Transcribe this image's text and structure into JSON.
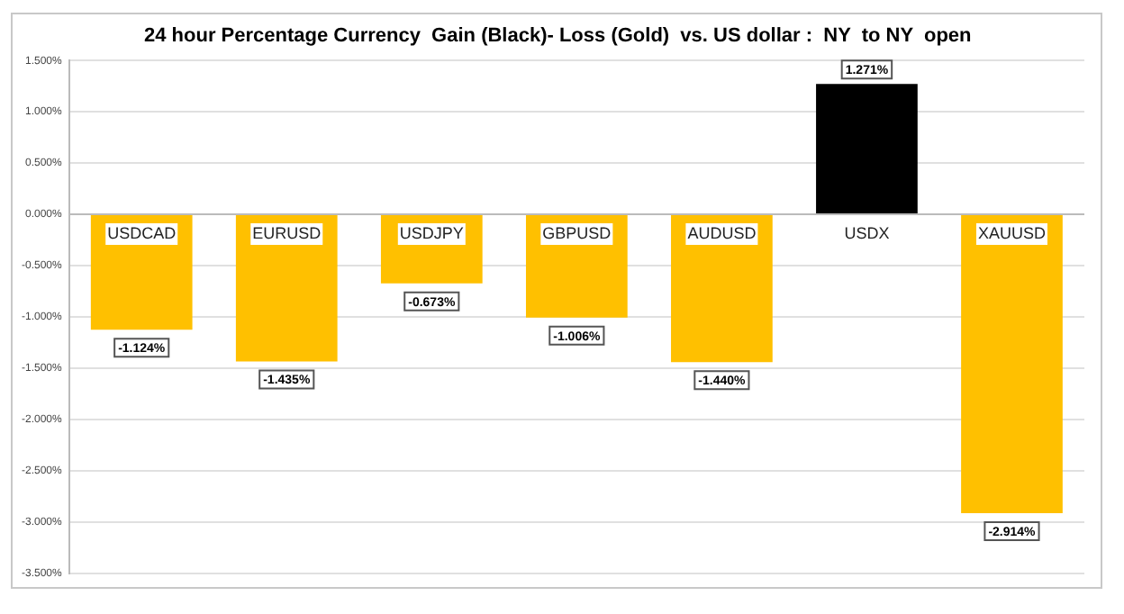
{
  "chart_data": {
    "type": "bar",
    "title": "24 hour Percentage Currency  Gain (Black)- Loss (Gold)  vs. US dollar :  NY  to NY  open",
    "categories": [
      "USDCAD",
      "EURUSD",
      "USDJPY",
      "GBPUSD",
      "AUDUSD",
      "USDX",
      "XAUUSD"
    ],
    "values": [
      -1.124,
      -1.435,
      -0.673,
      -1.006,
      -1.44,
      1.271,
      -2.914
    ],
    "colors": [
      "#ffc000",
      "#ffc000",
      "#ffc000",
      "#ffc000",
      "#ffc000",
      "#000000",
      "#ffc000"
    ],
    "value_labels": [
      "-1.124%",
      "-1.435%",
      "-0.673%",
      "-1.006%",
      "-1.440%",
      "1.271%",
      "-2.914%"
    ],
    "ylim": [
      -3.5,
      1.5
    ],
    "yticks": [
      {
        "value": -3.5,
        "label": "-3.500%"
      },
      {
        "value": -3,
        "label": "-3.000%"
      },
      {
        "value": -2.5,
        "label": "-2.500%"
      },
      {
        "value": -2,
        "label": "-2.000%"
      },
      {
        "value": -1.5,
        "label": "-1.500%"
      },
      {
        "value": -1,
        "label": "-1.000%"
      },
      {
        "value": -0.5,
        "label": "-0.500%"
      },
      {
        "value": 0,
        "label": "0.000%"
      },
      {
        "value": 0.5,
        "label": "0.500%"
      },
      {
        "value": 1,
        "label": "1.000%"
      },
      {
        "value": 1.5,
        "label": "1.500%"
      }
    ],
    "grid": "y",
    "legend": false
  }
}
